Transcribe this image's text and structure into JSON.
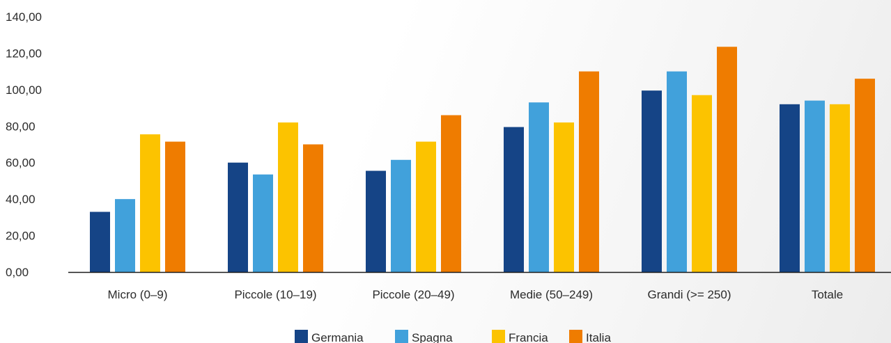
{
  "chart_data": {
    "type": "bar",
    "title": "",
    "xlabel": "",
    "ylabel": "",
    "ylim": [
      0,
      140
    ],
    "y_tick_step": 20,
    "y_tick_labels": [
      "0,00",
      "20,00",
      "40,00",
      "60,00",
      "80,00",
      "100,00",
      "120,00",
      "140,00"
    ],
    "grid": false,
    "legend_position": "bottom",
    "categories": [
      "Micro (0–9)",
      "Piccole (10–19)",
      "Piccole (20–49)",
      "Medie (50–249)",
      "Grandi (>= 250)",
      "Totale"
    ],
    "series": [
      {
        "name": "Germania",
        "color": "#154486",
        "values": [
          33,
          60,
          55.5,
          79.5,
          99.5,
          92
        ]
      },
      {
        "name": "Spagna",
        "color": "#41a1db",
        "values": [
          40,
          53.5,
          61.5,
          93,
          110,
          94
        ]
      },
      {
        "name": "Francia",
        "color": "#fcc300",
        "values": [
          75.5,
          82,
          71.5,
          82,
          97,
          92
        ]
      },
      {
        "name": "Italia",
        "color": "#ef7c00",
        "values": [
          71.5,
          70,
          86,
          110,
          123.5,
          106
        ]
      }
    ]
  }
}
